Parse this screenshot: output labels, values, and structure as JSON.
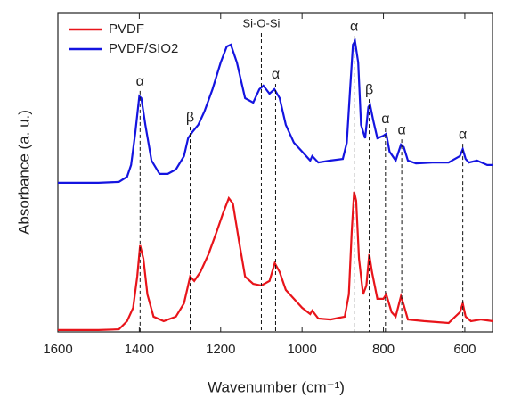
{
  "chart_data": {
    "type": "line",
    "x_label": "Wavenumber (cm⁻¹)",
    "y_label": "Absorbance (a. u.)",
    "xlim": [
      1600,
      532
    ],
    "xticks": [
      1600,
      1400,
      1200,
      1000,
      800,
      600
    ],
    "ylim": [
      0,
      100
    ],
    "legend": "upper left",
    "series": [
      {
        "name": "PVDF",
        "color": "#e8141a",
        "x": [
          1600,
          1500,
          1450,
          1430,
          1415,
          1405,
          1398,
          1390,
          1380,
          1365,
          1340,
          1310,
          1290,
          1275,
          1265,
          1250,
          1230,
          1210,
          1195,
          1180,
          1170,
          1155,
          1140,
          1120,
          1100,
          1080,
          1067,
          1055,
          1040,
          1020,
          1000,
          980,
          975,
          960,
          930,
          895,
          885,
          878,
          872,
          867,
          860,
          850,
          842,
          835,
          828,
          815,
          800,
          793,
          780,
          770,
          757,
          750,
          740,
          700,
          640,
          612,
          605,
          598,
          585,
          560,
          532
        ],
        "values": [
          0.6,
          0.6,
          0.8,
          3.4,
          7.6,
          17.4,
          27.2,
          23,
          11.8,
          4.8,
          3.4,
          4.8,
          9,
          17.4,
          16,
          18.8,
          24.4,
          31.4,
          37,
          42,
          40.3,
          28.6,
          17.4,
          15.1,
          14.6,
          16,
          21.6,
          18.8,
          13.2,
          10.4,
          7.6,
          5.6,
          6.7,
          4.2,
          3.9,
          4.8,
          11.8,
          31.4,
          44,
          41.2,
          23,
          11.8,
          14.6,
          24.4,
          18.8,
          10.4,
          10.4,
          11.8,
          6.2,
          4.8,
          11.2,
          8.4,
          3.9,
          3.4,
          2.8,
          6.2,
          9,
          4.8,
          3.4,
          3.9,
          3.4
        ]
      },
      {
        "name": "PVDF/SIO2",
        "color": "#1414e0",
        "x": [
          1600,
          1500,
          1450,
          1430,
          1420,
          1410,
          1400,
          1395,
          1385,
          1370,
          1350,
          1330,
          1310,
          1290,
          1280,
          1270,
          1255,
          1240,
          1220,
          1200,
          1185,
          1175,
          1160,
          1140,
          1120,
          1105,
          1095,
          1080,
          1068,
          1055,
          1040,
          1020,
          1000,
          980,
          975,
          960,
          930,
          900,
          890,
          882,
          875,
          870,
          862,
          855,
          845,
          837,
          833,
          825,
          815,
          800,
          793,
          785,
          770,
          757,
          750,
          740,
          720,
          680,
          640,
          612,
          605,
          598,
          590,
          570,
          545,
          532
        ],
        "values": [
          46.8,
          46.8,
          47.1,
          48.7,
          52.4,
          62.2,
          74,
          73.4,
          65,
          53.8,
          49.6,
          49.6,
          51,
          55.2,
          60.8,
          62.7,
          65,
          69.2,
          76.2,
          84.6,
          89.6,
          90.2,
          84.6,
          73.4,
          72,
          76.2,
          77.3,
          74.8,
          76.2,
          73.4,
          65,
          59.4,
          56.6,
          53.8,
          55.2,
          53.2,
          53.8,
          54.3,
          59.4,
          76.2,
          90.2,
          91.3,
          84.6,
          65,
          60.8,
          70.6,
          71.4,
          66.4,
          60.8,
          61.6,
          62.2,
          56.6,
          53.8,
          58.8,
          58,
          53.8,
          52.9,
          53.2,
          53.2,
          55.2,
          57.4,
          54.3,
          53.2,
          53.8,
          52.4,
          52.4
        ]
      }
    ],
    "annotations": [
      {
        "text": "α",
        "x": 1398
      },
      {
        "text": "β",
        "x": 1275
      },
      {
        "text": "Si-O-Si",
        "x": 1100
      },
      {
        "text": "α",
        "x": 1065
      },
      {
        "text": "α",
        "x": 872
      },
      {
        "text": "β",
        "x": 835
      },
      {
        "text": "α",
        "x": 795
      },
      {
        "text": "α",
        "x": 755
      },
      {
        "text": "α",
        "x": 605
      }
    ]
  }
}
